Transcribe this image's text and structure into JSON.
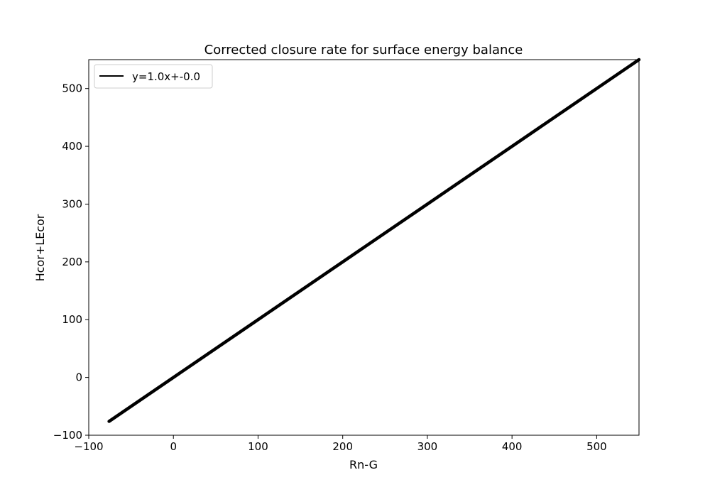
{
  "chart_data": {
    "type": "line",
    "title": "Corrected closure rate for surface energy balance",
    "xlabel": "Rn-G",
    "ylabel": "Hcor+LEcor",
    "xlim": [
      -100,
      550
    ],
    "ylim": [
      -100,
      550
    ],
    "x_ticks": [
      -100,
      0,
      100,
      200,
      300,
      400,
      500
    ],
    "y_ticks": [
      -100,
      0,
      100,
      200,
      300,
      400,
      500
    ],
    "grid": false,
    "legend_position": "upper-left",
    "series": [
      {
        "name": "y=1.0x+-0.0",
        "color": "#000000",
        "x": [
          -76,
          0,
          100,
          200,
          300,
          400,
          500,
          550
        ],
        "y": [
          -76,
          0,
          100,
          200,
          300,
          400,
          500,
          550
        ]
      }
    ]
  }
}
